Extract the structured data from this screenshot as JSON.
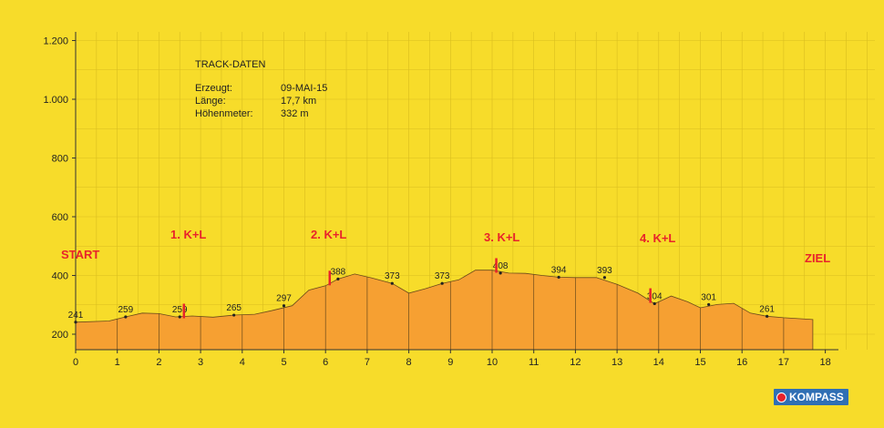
{
  "info": {
    "title": "TRACK-DATEN",
    "rows": [
      {
        "label": "Erzeugt:",
        "value": "09-MAI-15"
      },
      {
        "label": "Länge:",
        "value": "17,7 km"
      },
      {
        "label": "Höhenmeter:",
        "value": "332 m"
      }
    ]
  },
  "labels": {
    "start": "START",
    "end": "ZIEL",
    "stops": [
      "1. K+L",
      "2. K+L",
      "3. K+L",
      "4. K+L"
    ]
  },
  "brand": {
    "name": "KOMPASS",
    "color": "#2f6fb5"
  },
  "colors": {
    "background": "#f7dc2a",
    "fill": "#f6a032",
    "marker": "#e8232b",
    "grid": "#d9bd1f"
  },
  "chart_data": {
    "type": "area",
    "title": "",
    "xlabel": "",
    "ylabel": "",
    "xlim": [
      0,
      18
    ],
    "ylim": [
      100,
      1250
    ],
    "x_ticks": [
      0,
      1,
      2,
      3,
      4,
      5,
      6,
      7,
      8,
      9,
      10,
      11,
      12,
      13,
      14,
      15,
      16,
      17,
      18
    ],
    "y_ticks": [
      {
        "value": 200,
        "label": "200"
      },
      {
        "value": 400,
        "label": "400"
      },
      {
        "value": 600,
        "label": "600"
      },
      {
        "value": 800,
        "label": "800"
      },
      {
        "value": 1000,
        "label": "1.000"
      },
      {
        "value": 1200,
        "label": "1.200"
      }
    ],
    "grid": true,
    "profile": {
      "x": [
        0,
        0.8,
        1.2,
        1.6,
        2.0,
        2.4,
        2.8,
        3.3,
        3.8,
        4.3,
        4.7,
        5.2,
        5.6,
        6.0,
        6.3,
        6.7,
        7.1,
        7.6,
        8.0,
        8.4,
        8.8,
        9.2,
        9.6,
        10.0,
        10.4,
        10.8,
        11.2,
        11.6,
        12.0,
        12.5,
        13.0,
        13.5,
        13.9,
        14.3,
        14.7,
        15.0,
        15.4,
        15.8,
        16.2,
        16.6,
        17.0,
        17.7
      ],
      "y": [
        241,
        245,
        259,
        272,
        270,
        259,
        262,
        258,
        265,
        268,
        280,
        297,
        350,
        365,
        388,
        405,
        392,
        373,
        340,
        355,
        373,
        385,
        418,
        418,
        408,
        407,
        400,
        394,
        393,
        393,
        370,
        340,
        304,
        330,
        310,
        290,
        301,
        305,
        272,
        261,
        256,
        250
      ]
    },
    "labeled_points": [
      {
        "x": 0,
        "y": 241,
        "label": "241"
      },
      {
        "x": 1.2,
        "y": 259,
        "label": "259"
      },
      {
        "x": 2.5,
        "y": 259,
        "label": "259"
      },
      {
        "x": 3.8,
        "y": 265,
        "label": "265"
      },
      {
        "x": 5.0,
        "y": 297,
        "label": "297"
      },
      {
        "x": 6.3,
        "y": 388,
        "label": "388"
      },
      {
        "x": 7.6,
        "y": 373,
        "label": "373"
      },
      {
        "x": 8.8,
        "y": 373,
        "label": "373"
      },
      {
        "x": 10.2,
        "y": 408,
        "label": "408"
      },
      {
        "x": 11.6,
        "y": 394,
        "label": "394"
      },
      {
        "x": 12.7,
        "y": 393,
        "label": "393"
      },
      {
        "x": 13.9,
        "y": 304,
        "label": "304"
      },
      {
        "x": 15.2,
        "y": 301,
        "label": "301"
      },
      {
        "x": 16.6,
        "y": 261,
        "label": "261"
      }
    ],
    "stop_markers_x": [
      2.6,
      6.1,
      10.1,
      13.8
    ]
  }
}
